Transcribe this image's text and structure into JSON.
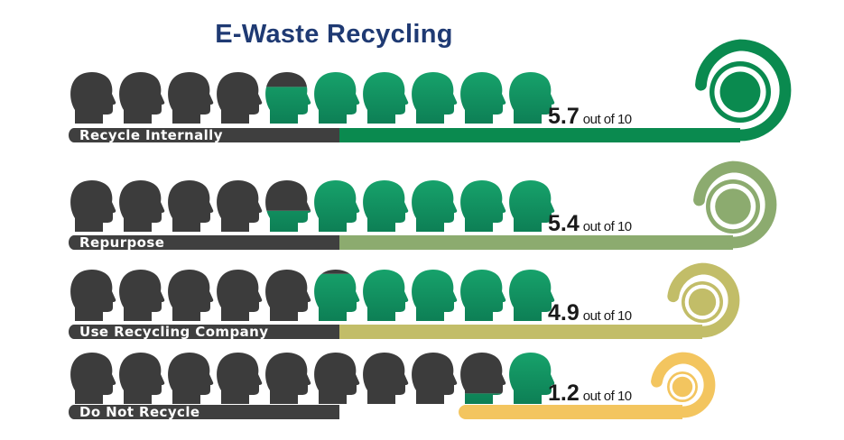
{
  "title": "E-Waste Recycling",
  "chart_data": {
    "type": "pictograph",
    "title": "E-Waste Recycling",
    "scale_max": 10,
    "icons_per_row": 10,
    "value_suffix": "out of 10",
    "rows": [
      {
        "label": "Recycle Internally",
        "value": 5.7,
        "value_text": "5.7",
        "color": "#0a8a4f"
      },
      {
        "label": "Repurpose",
        "value": 5.4,
        "value_text": "5.4",
        "color": "#8cab6f"
      },
      {
        "label": "Use Recycling Company",
        "value": 4.9,
        "value_text": "4.9",
        "color": "#c2bd68"
      },
      {
        "label": "Do Not Recycle",
        "value": 1.2,
        "value_text": "1.2",
        "color": "#f3c55f"
      }
    ],
    "colors": {
      "filled_head_top": "#17a26b",
      "filled_head_bottom": "#0d7f55",
      "empty_head": "#3c3c3c",
      "label_bar": "#3f3f3f",
      "title": "#1f3a73"
    }
  }
}
